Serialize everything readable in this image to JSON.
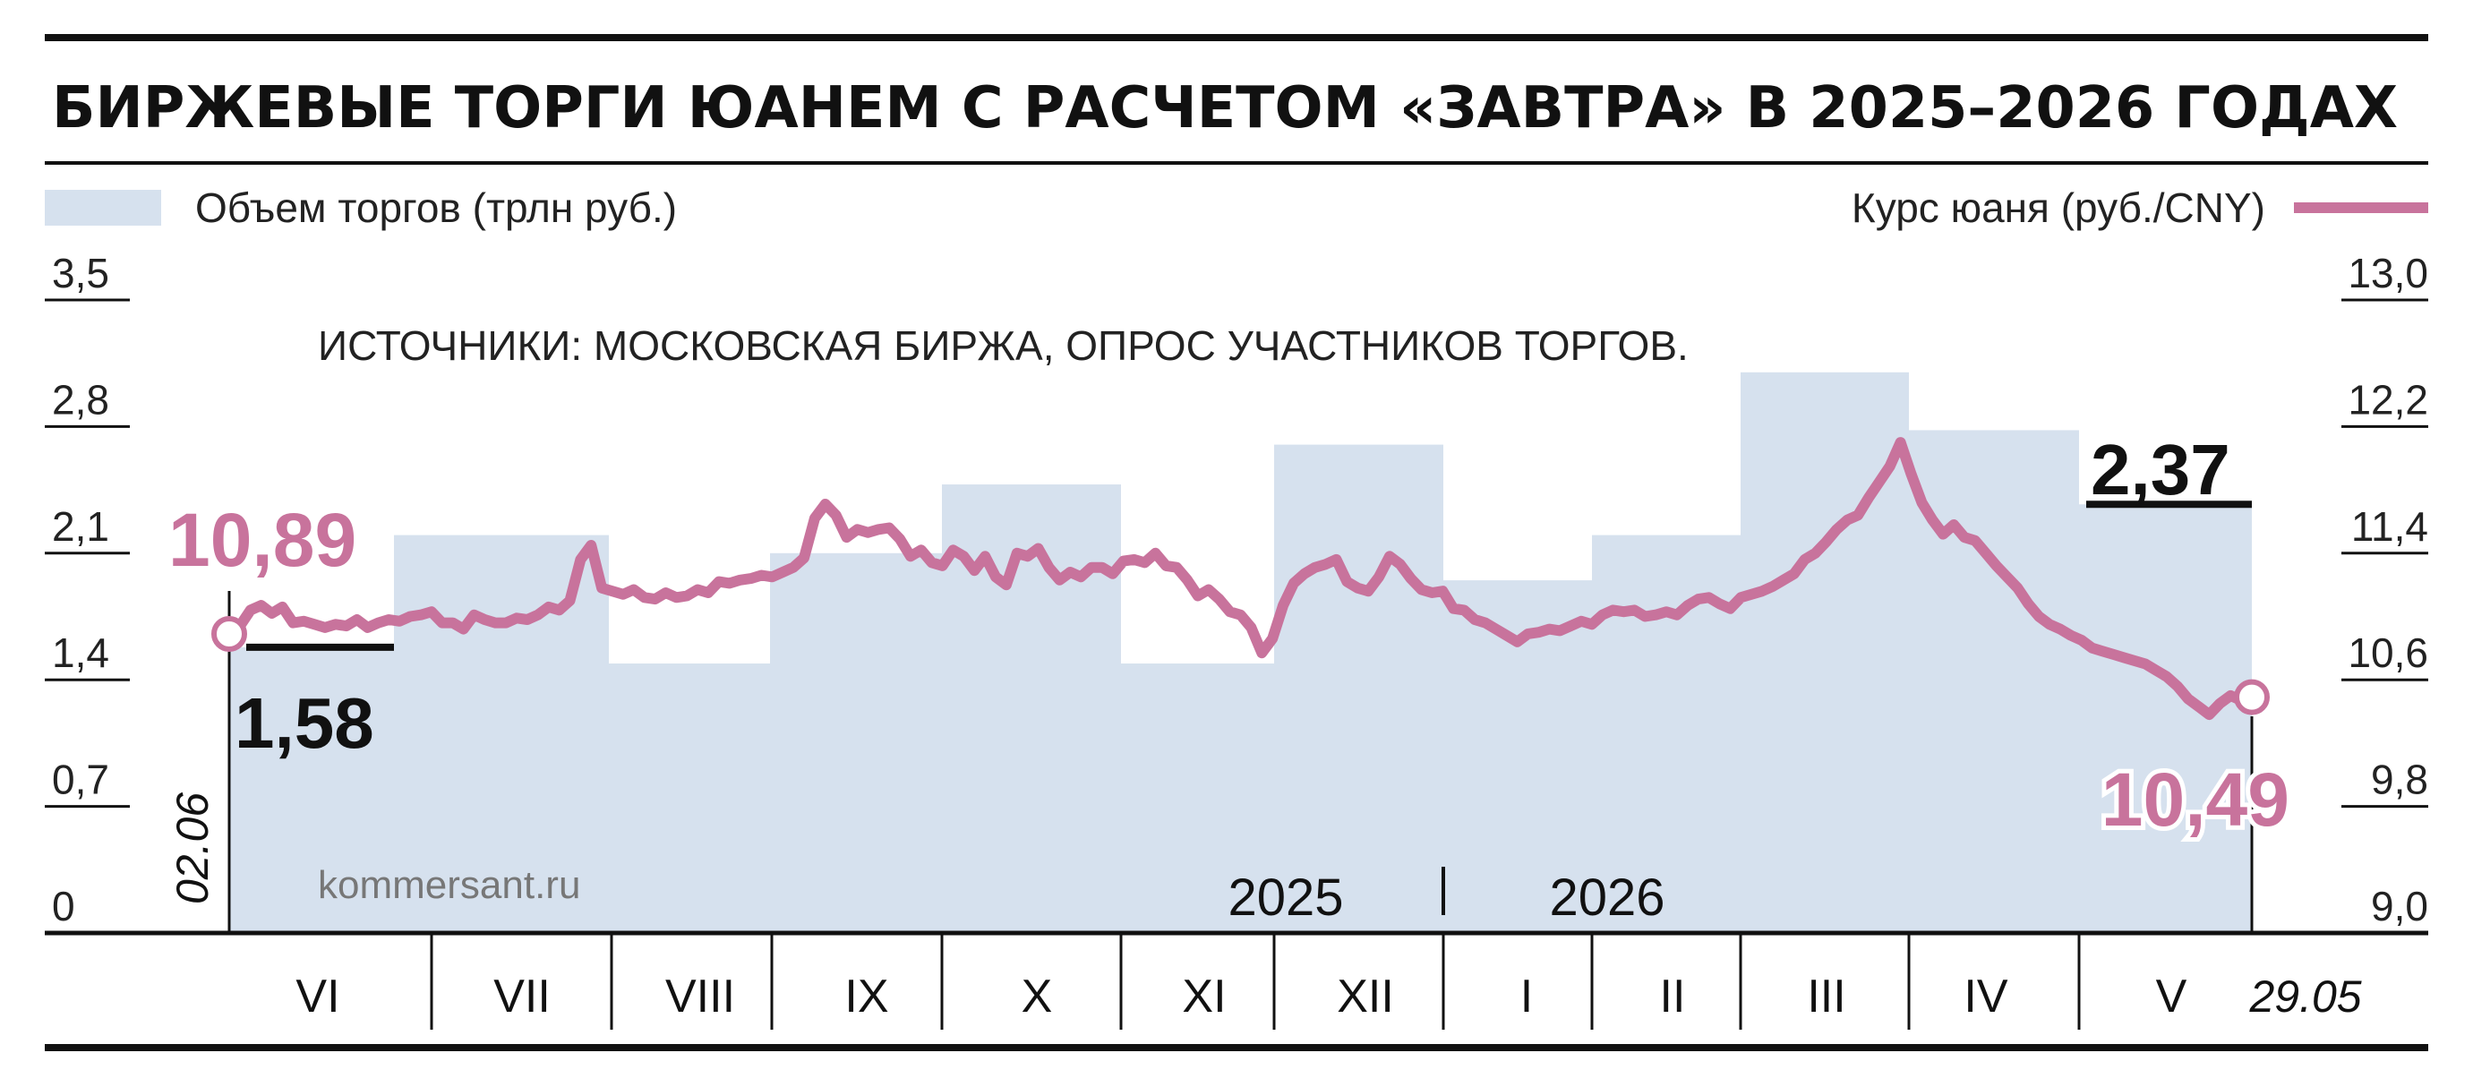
{
  "chart_data": {
    "type": "bar+line",
    "title": "БИРЖЕВЫЕ ТОРГИ ЮАНЕМ С РАСЧЕТОМ «ЗАВТРА» В 2025–2026 ГОДАХ",
    "source": "ИСТОЧНИКИ: МОСКОВСКАЯ БИРЖА, ОПРОС УЧАСТНИКОВ ТОРГОВ.",
    "credit": "kommersant.ru",
    "legend": {
      "bars": "Объем торгов (трлн руб.)",
      "line": "Курс юаня (руб./CNY)"
    },
    "colors": {
      "bars": "#d6e1ee",
      "line": "#c8739c",
      "ink": "#111111"
    },
    "y_left": {
      "ticks": [
        "0",
        "0,7",
        "1,4",
        "2,1",
        "2,8",
        "3,5"
      ],
      "ylim": [
        0,
        3.5
      ]
    },
    "y_right": {
      "ticks": [
        "9,0",
        "9,8",
        "10,6",
        "11,4",
        "12,2",
        "13,0"
      ],
      "ylim": [
        9.0,
        13.0
      ]
    },
    "months": [
      "VI",
      "VII",
      "VIII",
      "IX",
      "X",
      "XI",
      "XII",
      "I",
      "II",
      "III",
      "IV",
      "V"
    ],
    "years": [
      "2025",
      "2026"
    ],
    "start_date": "02.06",
    "end_date": "29.05",
    "bar_values": [
      1.58,
      2.2,
      1.49,
      2.1,
      2.48,
      1.49,
      2.7,
      1.95,
      2.2,
      3.1,
      2.78,
      2.37
    ],
    "bar_label_first": "1,58",
    "bar_label_last": "2,37",
    "rate_start_label": "10,89",
    "rate_end_label": "10,49",
    "rate_values": [
      10.89,
      10.94,
      11.04,
      11.07,
      11.02,
      11.06,
      10.96,
      10.97,
      10.95,
      10.93,
      10.95,
      10.94,
      10.98,
      10.93,
      10.96,
      10.98,
      10.97,
      11.0,
      11.01,
      11.03,
      10.96,
      10.96,
      10.92,
      11.01,
      10.98,
      10.96,
      10.96,
      10.99,
      10.98,
      11.01,
      11.06,
      11.04,
      11.1,
      11.36,
      11.45,
      11.18,
      11.16,
      11.14,
      11.17,
      11.12,
      11.11,
      11.15,
      11.12,
      11.13,
      11.17,
      11.15,
      11.22,
      11.21,
      11.23,
      11.24,
      11.26,
      11.25,
      11.28,
      11.31,
      11.37,
      11.62,
      11.71,
      11.64,
      11.5,
      11.55,
      11.53,
      11.55,
      11.56,
      11.49,
      11.38,
      11.42,
      11.34,
      11.32,
      11.42,
      11.38,
      11.29,
      11.38,
      11.25,
      11.2,
      11.4,
      11.38,
      11.43,
      11.31,
      11.23,
      11.28,
      11.25,
      11.31,
      11.31,
      11.27,
      11.35,
      11.36,
      11.34,
      11.4,
      11.32,
      11.31,
      11.23,
      11.13,
      11.17,
      11.11,
      11.03,
      11.01,
      10.93,
      10.77,
      10.86,
      11.07,
      11.21,
      11.27,
      11.31,
      11.33,
      11.36,
      11.22,
      11.18,
      11.16,
      11.25,
      11.38,
      11.33,
      11.24,
      11.17,
      11.15,
      11.16,
      11.05,
      11.04,
      10.98,
      10.96,
      10.92,
      10.88,
      10.84,
      10.89,
      10.9,
      10.92,
      10.91,
      10.94,
      10.97,
      10.95,
      11.01,
      11.04,
      11.03,
      11.04,
      11.0,
      11.01,
      11.03,
      11.01,
      11.07,
      11.11,
      11.12,
      11.08,
      11.05,
      11.12,
      11.14,
      11.16,
      11.19,
      11.23,
      11.27,
      11.36,
      11.4,
      11.47,
      11.55,
      11.61,
      11.64,
      11.75,
      11.85,
      11.95,
      12.1,
      11.9,
      11.72,
      11.61,
      11.52,
      11.58,
      11.5,
      11.48,
      11.4,
      11.32,
      11.25,
      11.18,
      11.08,
      11.0,
      10.95,
      10.92,
      10.88,
      10.85,
      10.8,
      10.78,
      10.76,
      10.74,
      10.72,
      10.7,
      10.66,
      10.62,
      10.56,
      10.48,
      10.43,
      10.38,
      10.45,
      10.5,
      10.47,
      10.49
    ],
    "rate_bar_value_label": "2,37"
  }
}
